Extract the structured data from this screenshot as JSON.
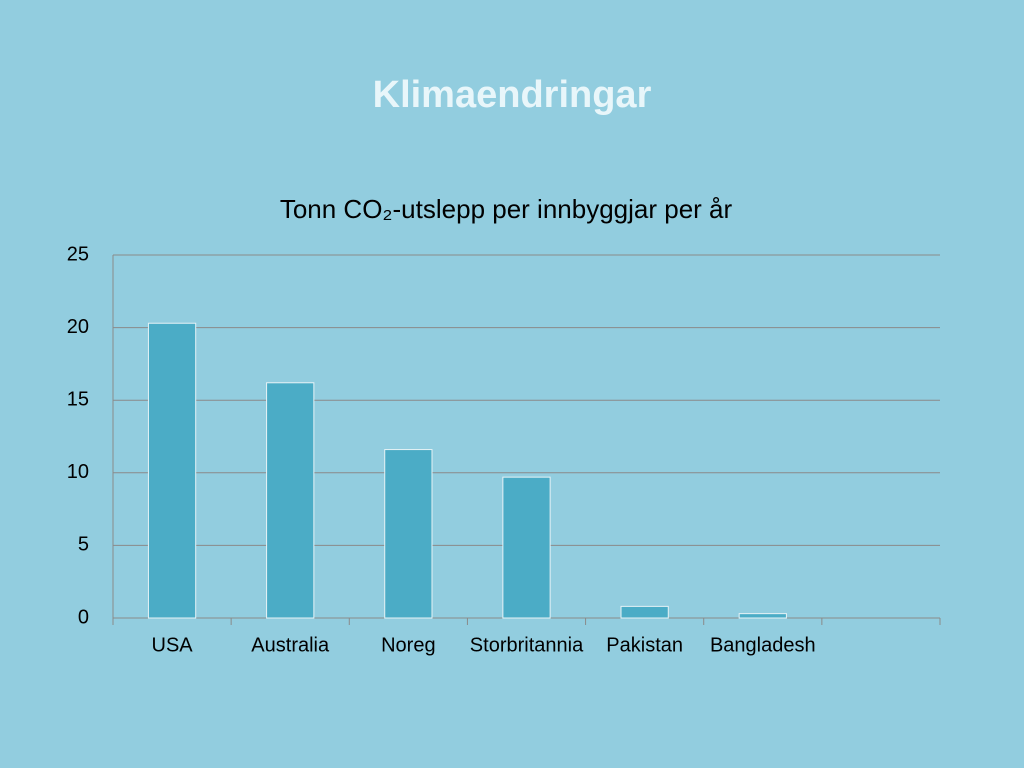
{
  "slide_title": "Klimaendringar",
  "chart_data": {
    "type": "bar",
    "title": "Tonn CO₂-utslepp per innbyggjar per år",
    "categories": [
      "USA",
      "Australia",
      "Noreg",
      "Storbritannia",
      "Pakistan",
      "Bangladesh",
      null
    ],
    "values": [
      20.3,
      16.2,
      11.6,
      9.7,
      0.8,
      0.3,
      null
    ],
    "color": "#4bacc6",
    "ylim": [
      0,
      25
    ],
    "yticks": [
      0,
      5,
      10,
      15,
      20,
      25
    ],
    "grid": true
  }
}
